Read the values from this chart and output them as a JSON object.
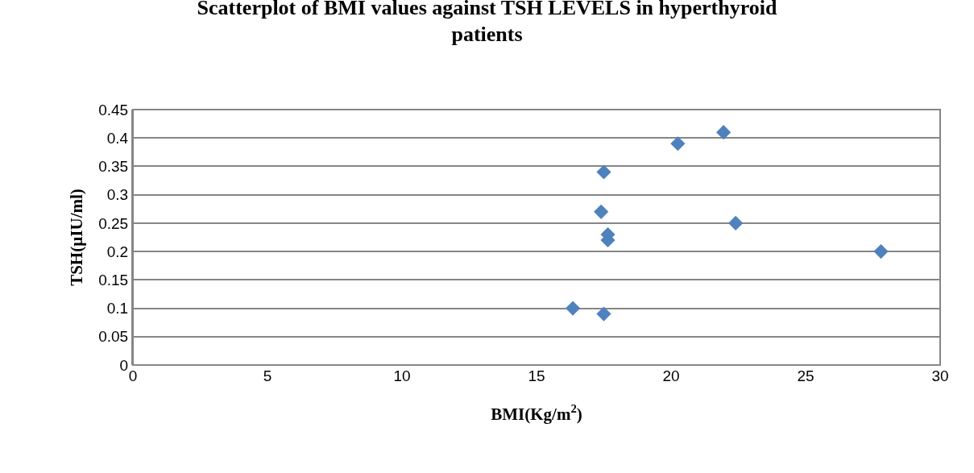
{
  "chart_data": {
    "type": "scatter",
    "title": "Scatterplot of BMI values against TSH LEVELS in hyperthyroid patients",
    "xlabel": "BMI(Kg/m$^{2}$)",
    "ylabel": "TSH(µIU/ml)",
    "x": [
      16.35,
      17.5,
      17.4,
      17.5,
      17.65,
      17.65,
      20.25,
      21.95,
      22.4,
      27.8
    ],
    "values": [
      0.1,
      0.09,
      0.27,
      0.34,
      0.23,
      0.22,
      0.39,
      0.41,
      0.25,
      0.2
    ],
    "color": "#4f81bd",
    "marker": "diamond",
    "xlim": [
      0,
      30
    ],
    "xticks": [
      0,
      5,
      10,
      15,
      20,
      25,
      30
    ],
    "ylim": [
      0,
      0.45
    ],
    "yticks": [
      0,
      0.05,
      0.1,
      0.15,
      0.2,
      0.25,
      0.3,
      0.35,
      0.4,
      0.45
    ],
    "grid": "y"
  }
}
